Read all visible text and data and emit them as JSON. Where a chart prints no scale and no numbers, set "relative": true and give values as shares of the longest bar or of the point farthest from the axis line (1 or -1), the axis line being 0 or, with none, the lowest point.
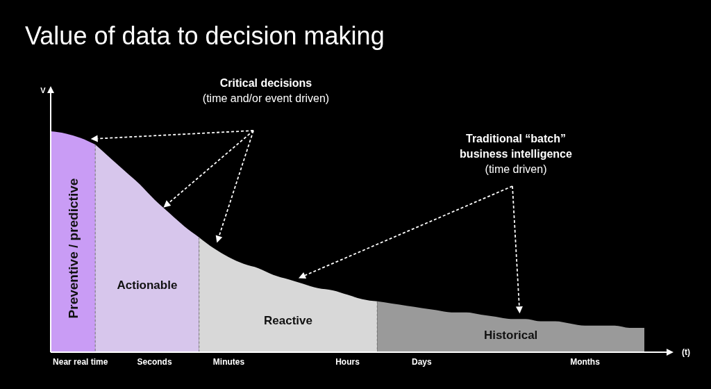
{
  "chart_data": {
    "type": "area",
    "title": "Value of data to decision making",
    "ylabel": "V",
    "xlabel": "(t)",
    "relative": true,
    "categories": [
      null,
      null,
      "Near real time",
      null,
      null,
      null,
      null,
      "Seconds",
      null,
      null,
      null,
      null,
      "Minutes",
      null,
      null,
      null,
      null,
      null,
      null,
      null,
      "Hours",
      null,
      null,
      null,
      null,
      "Days",
      null,
      null,
      null,
      null,
      null,
      null,
      null,
      null,
      null,
      null,
      "Months",
      null,
      null,
      null,
      null
    ],
    "series": [
      {
        "name": "Preventive / predictive",
        "color": "#c99cf5",
        "values": [
          1.0,
          0.99,
          0.97,
          0.94,
          null,
          null,
          null,
          null,
          null,
          null,
          null,
          null,
          null,
          null,
          null,
          null,
          null,
          null,
          null,
          null,
          null,
          null,
          null,
          null,
          null,
          null,
          null,
          null,
          null,
          null,
          null,
          null,
          null,
          null,
          null,
          null,
          null,
          null,
          null,
          null,
          null
        ]
      },
      {
        "name": "Actionable",
        "color": "#d7c6ec",
        "values": [
          null,
          null,
          null,
          0.94,
          0.88,
          0.82,
          0.76,
          0.69,
          0.63,
          0.57,
          0.52,
          null,
          null,
          null,
          null,
          null,
          null,
          null,
          null,
          null,
          null,
          null,
          null,
          null,
          null,
          null,
          null,
          null,
          null,
          null,
          null,
          null,
          null,
          null,
          null,
          null,
          null,
          null,
          null,
          null,
          null
        ]
      },
      {
        "name": "Reactive",
        "color": "#d8d8d8",
        "values": [
          null,
          null,
          null,
          null,
          null,
          null,
          null,
          null,
          null,
          null,
          0.52,
          0.47,
          0.43,
          0.4,
          0.38,
          0.35,
          0.33,
          0.31,
          0.29,
          0.28,
          0.26,
          0.24,
          0.23,
          null,
          null,
          null,
          null,
          null,
          null,
          null,
          null,
          null,
          null,
          null,
          null,
          null,
          null,
          null,
          null,
          null,
          null
        ]
      },
      {
        "name": "Historical",
        "color": "#9a9a9a",
        "values": [
          null,
          null,
          null,
          null,
          null,
          null,
          null,
          null,
          null,
          null,
          null,
          null,
          null,
          null,
          null,
          null,
          null,
          null,
          null,
          null,
          null,
          null,
          0.23,
          0.22,
          0.21,
          0.2,
          0.19,
          0.18,
          0.18,
          0.17,
          0.16,
          0.15,
          0.15,
          0.14,
          0.14,
          0.13,
          0.12,
          0.12,
          0.12,
          0.11,
          0.11
        ]
      }
    ],
    "annotations": [
      "Critical decisions\n(time and/or event driven)",
      "Traditional “batch”\nbusiness intelligence\n(time driven)"
    ]
  }
}
